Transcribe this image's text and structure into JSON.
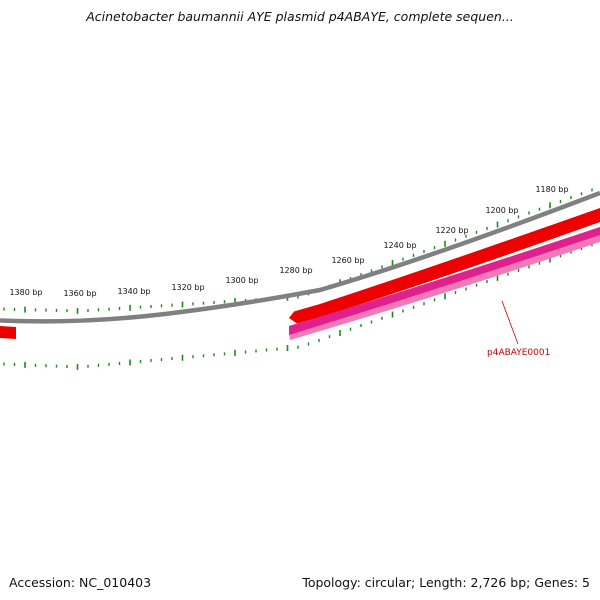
{
  "title": "Acinetobacter baumannii AYE plasmid p4ABAYE, complete sequen...",
  "footer": {
    "accession": "Accession: NC_010403",
    "summary": "Topology: circular; Length: 2,726 bp; Genes: 5"
  },
  "colors": {
    "backbone": "#808080",
    "ticks": "#1a8a1a",
    "gene_forward": "#ee0000",
    "gene_reverse": "#e0208c",
    "gene_label": "#cc0000"
  },
  "tick_labels": [
    "1180 bp",
    "1200 bp",
    "1220 bp",
    "1240 bp",
    "1260 bp",
    "1280 bp",
    "1300 bp",
    "1320 bp",
    "1340 bp",
    "1360 bp",
    "1380 bp"
  ],
  "genes": [
    {
      "label": "p4ABAYE0001"
    }
  ]
}
